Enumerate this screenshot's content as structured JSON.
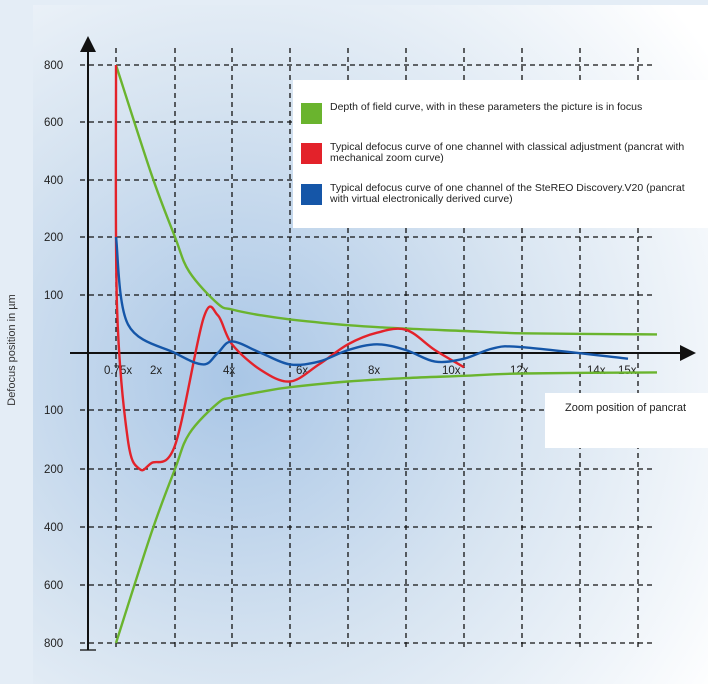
{
  "chart_data": {
    "type": "line",
    "ylabel": "Defocus position in µm",
    "xlabel": "Zoom position of pancrat",
    "x_ticks": [
      "0.75x",
      "2x",
      "4x",
      "6x",
      "8x",
      "10x",
      "12x",
      "14x",
      "15x"
    ],
    "y_ticks_upper": [
      "800",
      "600",
      "400",
      "200",
      "100"
    ],
    "y_ticks_lower": [
      "100",
      "200",
      "400",
      "600",
      "800"
    ],
    "grid": true,
    "legend_position": "top-right",
    "series": [
      {
        "name": "Depth of field curve, with in these parameters the picture is in focus",
        "color": "#6ab42e",
        "x": [
          "0.75x",
          "1.5x",
          "2x",
          "2.5x",
          "3.5x",
          "4x",
          "5x",
          "6x",
          "8x",
          "10x",
          "12x",
          "14x",
          "15x"
        ],
        "y_upper": [
          800,
          420,
          200,
          140,
          85,
          75,
          65,
          58,
          48,
          42,
          38,
          34,
          32
        ],
        "y_lower": [
          -800,
          -420,
          -200,
          -140,
          -88,
          -78,
          -68,
          -60,
          -50,
          -44,
          -40,
          -36,
          -34
        ]
      },
      {
        "name": "Typical defocus curve of one channel with classical adjustment (pancrat with mechanical zoom curve)",
        "color": "#e3222a",
        "x": [
          "0.75x",
          "0.75x",
          "1x",
          "1.25x",
          "1.5x",
          "2x",
          "3x",
          "3.5x",
          "4x",
          "5x",
          "6x",
          "7x",
          "8x",
          "9x",
          "10x",
          "11x",
          "12x"
        ],
        "y": [
          800,
          80,
          -150,
          -200,
          -190,
          -160,
          60,
          65,
          15,
          -30,
          -50,
          -20,
          15,
          35,
          40,
          5,
          -25
        ]
      },
      {
        "name": "Typical defocus curve of one channel of the SteREO Discovery.V20 (pancrat with virtual electronically derived curve)",
        "color": "#1556a8",
        "x": [
          "0.75x",
          "1x",
          "2x",
          "3x",
          "3.5x",
          "4x",
          "5x",
          "6x",
          "7x",
          "8x",
          "9x",
          "10x",
          "11x",
          "12x",
          "13x",
          "14x",
          "15x"
        ],
        "y": [
          200,
          50,
          0,
          -20,
          0,
          20,
          0,
          -20,
          -15,
          5,
          15,
          5,
          -15,
          -10,
          8,
          10,
          -10
        ]
      }
    ]
  },
  "legend": [
    {
      "color": "#6ab42e",
      "text": "Depth of field curve, with in these parameters the picture is in focus"
    },
    {
      "color": "#e3222a",
      "text": "Typical defocus curve of one channel with classical adjustment (pancrat with mechanical zoom curve)"
    },
    {
      "color": "#1556a8",
      "text": "Typical defocus curve of one channel of the SteREO Discovery.V20 (pancrat with virtual electronically derived curve)"
    }
  ]
}
